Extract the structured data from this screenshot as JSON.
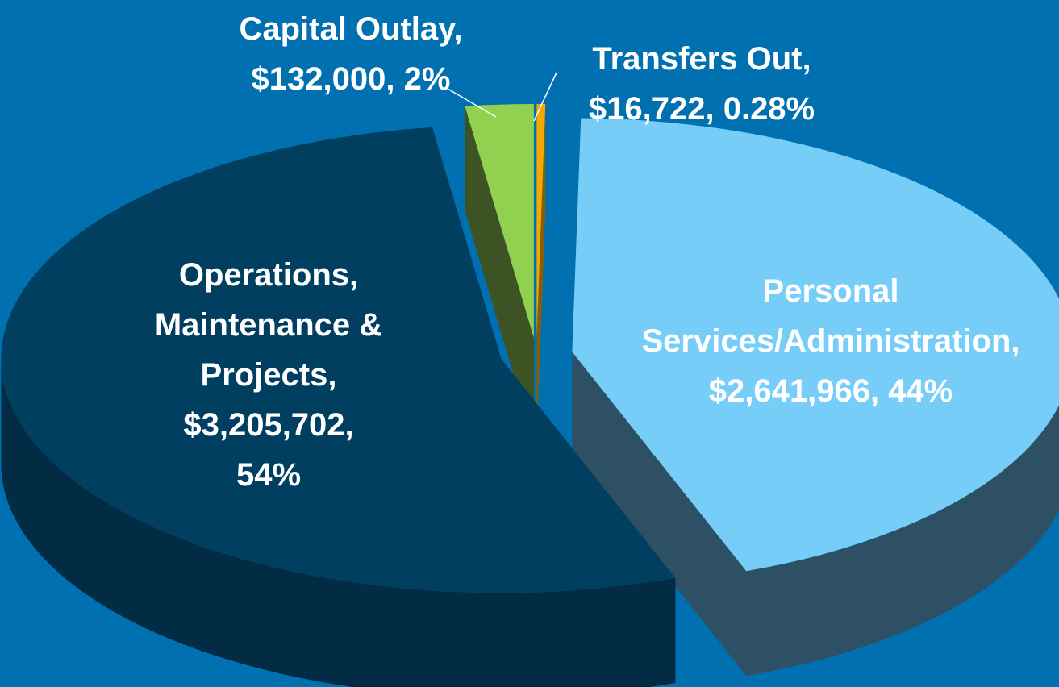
{
  "chart_data": {
    "type": "pie",
    "categories": [
      "Transfers Out,",
      "Personal Services/Administration,",
      "Operations, Maintenance & Projects,",
      "Capital Outlay,"
    ],
    "values": [
      16722,
      2641966,
      3205702,
      132000
    ],
    "value_labels": [
      "$16,722,",
      "$2,641,966,",
      "$3,205,702,",
      "$132,000,"
    ],
    "percents": [
      0.28,
      44,
      54,
      2
    ],
    "percent_labels": [
      "0.28%",
      "44%",
      "54%",
      "2%"
    ],
    "colors": [
      "#f5a800",
      "#75cdf8",
      "#013f60",
      "#92d050"
    ],
    "side_colors": [
      "#8a5e00",
      "#2e5064",
      "#012c44",
      "#3d5323"
    ]
  }
}
